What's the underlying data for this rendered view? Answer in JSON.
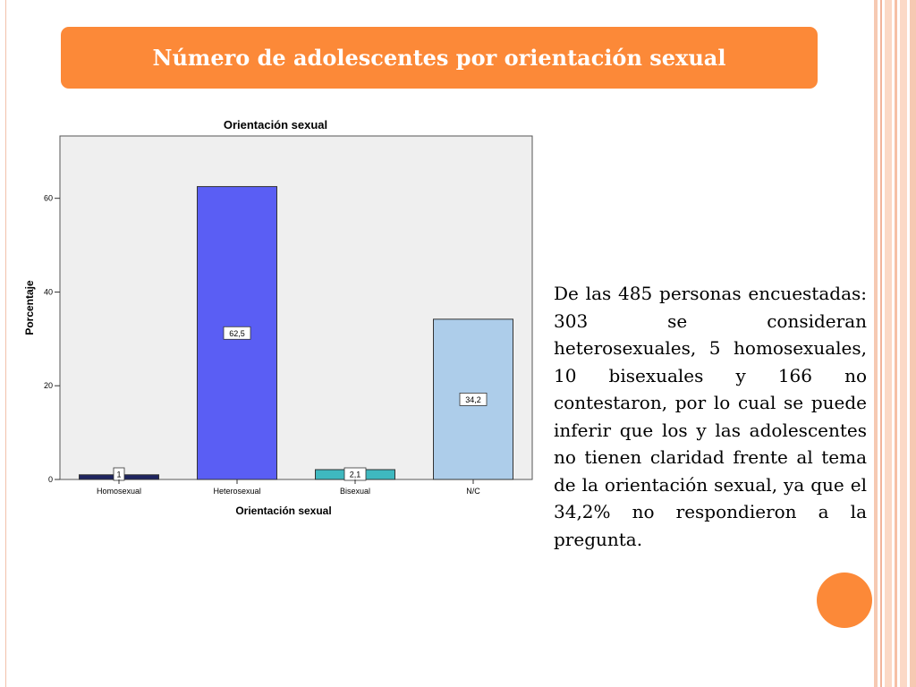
{
  "slide": {
    "title": "Número de adolescentes por orientación sexual",
    "description": "De las 485 personas encuestadas: 303 se consideran heterosexuales, 5 homosexuales, 10 bisexuales y 166 no contestaron, por lo cual se puede inferir que los y las adolescentes no tienen claridad frente al tema de la orientación sexual, ya que el 34,2% no respondieron a la pregunta.",
    "accent_color": "#fc8938"
  },
  "chart_data": {
    "type": "bar",
    "title": "Orientación sexual",
    "xlabel": "Orientación sexual",
    "ylabel": "Porcentaje",
    "categories": [
      "Homosexual",
      "Heterosexual",
      "Bisexual",
      "N/C"
    ],
    "values": [
      1,
      62.5,
      2.1,
      34.2
    ],
    "data_labels": [
      "1",
      "62,5",
      "2,1",
      "34,2"
    ],
    "colors": [
      "#1e2460",
      "#5a5ef4",
      "#3fb8bf",
      "#adcdea"
    ],
    "yticks": [
      0,
      20,
      40,
      60
    ],
    "ylim": [
      0,
      73.3
    ],
    "plot_background": "#efefef",
    "grid": false,
    "legend": "none"
  }
}
